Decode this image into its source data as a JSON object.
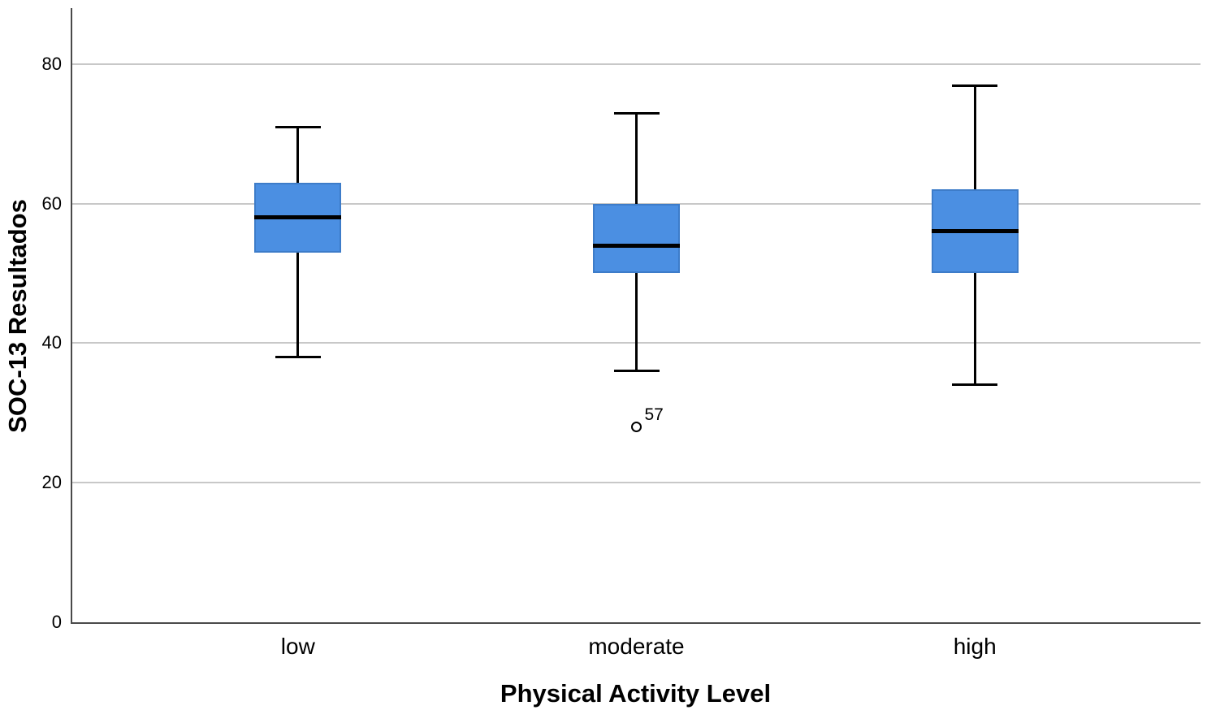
{
  "chart_data": {
    "type": "boxplot",
    "title": "",
    "xlabel": "Physical Activity Level",
    "ylabel": "SOC-13 Resultados",
    "categories": [
      "low",
      "moderate",
      "high"
    ],
    "yticks": [
      0,
      20,
      40,
      60,
      80
    ],
    "ylim": [
      0,
      88
    ],
    "grid": true,
    "legend": "none",
    "boxes": [
      {
        "category": "low",
        "whisker_low": 38,
        "q1": 53,
        "median": 58,
        "q3": 63,
        "whisker_high": 71,
        "outliers": []
      },
      {
        "category": "moderate",
        "whisker_low": 36,
        "q1": 50,
        "median": 54,
        "q3": 60,
        "whisker_high": 73,
        "outliers": [
          {
            "value": 28,
            "label": "57"
          }
        ]
      },
      {
        "category": "high",
        "whisker_low": 34,
        "q1": 50,
        "median": 56,
        "q3": 62,
        "whisker_high": 77,
        "outliers": []
      }
    ],
    "colors": {
      "box_fill": "#4B8FE2",
      "box_border": "#3D7CC9",
      "median": "#000000",
      "whisker": "#000000",
      "outlier": "#000000",
      "gridline": "#c8c8c8",
      "axis": "#4a4a4a",
      "text": "#000000",
      "background": "#ffffff"
    }
  }
}
